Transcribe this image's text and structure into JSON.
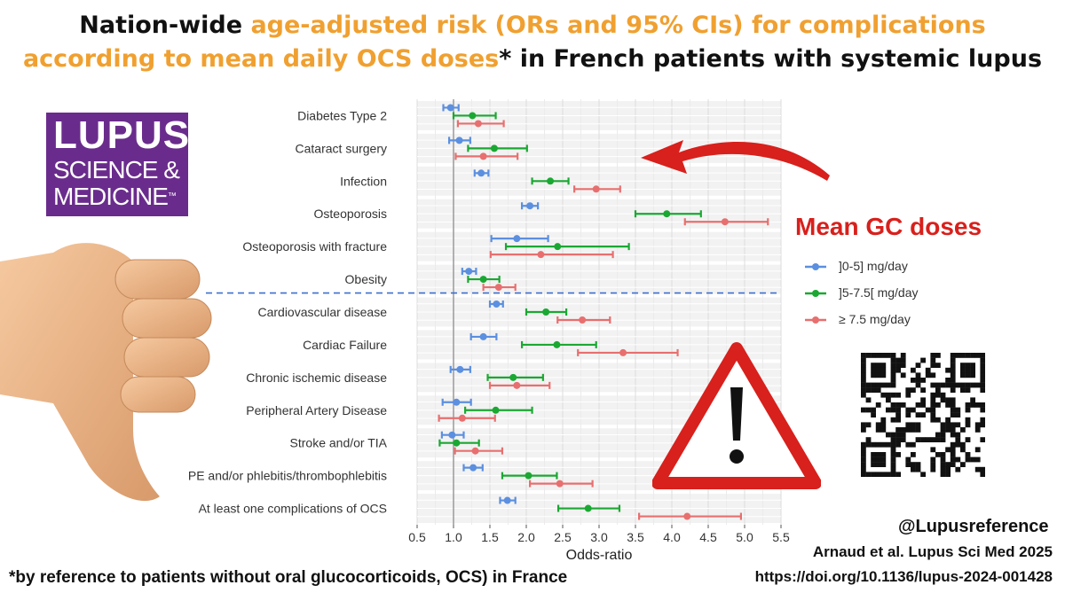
{
  "title": {
    "part1": "Nation-wide ",
    "part2_highlight": "age-adjusted risk (ORs and 95% CIs) for complications",
    "part3_highlight": "according to mean daily OCS doses",
    "part4": "* in French patients with systemic lupus"
  },
  "logo": {
    "line1": "LUPUS",
    "line2": "SCIENCE &",
    "line3": "MEDICINE",
    "tm": "™"
  },
  "legend": {
    "title": "Mean GC doses",
    "items": [
      "]0-5] mg/day",
      "]5-7.5[ mg/day",
      "≥ 7.5 mg/day"
    ]
  },
  "footer": {
    "handle": "@Lupusreference",
    "citation": "Arnaud et al. Lupus Sci Med 2025",
    "doi": "https://doi.org/10.1136/lupus-2024-001428",
    "footnote": "*by reference to patients without oral glucocorticoids, OCS) in France"
  },
  "colors": {
    "low": "#5b8fe0",
    "mid": "#1aa832",
    "high": "#e86f6f",
    "title_highlight": "#f0a030",
    "legend_title": "#d8201c",
    "logo_bg": "#6a2c8c"
  },
  "icons": [
    "thumbs-down-hand-icon",
    "warning-triangle-icon",
    "red-arrow-icon",
    "qr-code-icon"
  ],
  "chart_data": {
    "type": "forest",
    "xlabel": "Odds-ratio",
    "xlim": [
      0.5,
      5.5
    ],
    "xticks": [
      "0.5",
      "1.0",
      "1.5",
      "2.0",
      "2.5",
      "3.0",
      "3.5",
      "4.0",
      "4.5",
      "5.0",
      "5.5"
    ],
    "reference_line": 1.0,
    "separator_after_row": 6,
    "categories": [
      "Diabetes Type 2",
      "Cataract surgery",
      "Infection",
      "Osteoporosis",
      "Osteoporosis with fracture",
      "Obesity",
      "Cardiovascular disease",
      "Cardiac Failure",
      "Chronic ischemic disease",
      "Peripheral Artery Disease",
      "Stroke and/or TIA",
      "PE and/or phlebitis/thrombophlebitis",
      "At least one complications of OCS"
    ],
    "series": [
      {
        "name": "]0-5] mg/day",
        "color": "#5b8fe0",
        "or": [
          0.96,
          1.08,
          1.38,
          2.05,
          1.87,
          1.21,
          1.59,
          1.41,
          1.09,
          1.04,
          0.98,
          1.27,
          1.74
        ],
        "lower": [
          0.86,
          0.94,
          1.29,
          1.94,
          1.52,
          1.12,
          1.5,
          1.24,
          0.96,
          0.85,
          0.84,
          1.14,
          1.64
        ],
        "upper": [
          1.07,
          1.23,
          1.48,
          2.16,
          2.3,
          1.31,
          1.68,
          1.59,
          1.23,
          1.24,
          1.14,
          1.4,
          1.85
        ]
      },
      {
        "name": "]5-7.5[ mg/day",
        "color": "#1aa832",
        "or": [
          1.26,
          1.56,
          2.33,
          3.93,
          2.43,
          1.41,
          2.27,
          2.42,
          1.82,
          1.58,
          1.04,
          2.03,
          2.85
        ],
        "lower": [
          1.0,
          1.2,
          2.08,
          3.5,
          1.72,
          1.2,
          2.0,
          1.94,
          1.47,
          1.16,
          0.81,
          1.67,
          2.44
        ],
        "upper": [
          1.58,
          2.01,
          2.58,
          4.4,
          3.41,
          1.63,
          2.55,
          2.96,
          2.23,
          2.08,
          1.35,
          2.42,
          3.28
        ]
      },
      {
        "name": "≥ 7.5 mg/day",
        "color": "#e86f6f",
        "or": [
          1.34,
          1.41,
          2.96,
          4.73,
          2.2,
          1.62,
          2.77,
          3.33,
          1.87,
          1.12,
          1.3,
          2.46,
          4.21
        ],
        "lower": [
          1.06,
          1.03,
          2.66,
          4.18,
          1.51,
          1.41,
          2.43,
          2.71,
          1.5,
          0.8,
          1.02,
          2.05,
          3.55
        ],
        "upper": [
          1.69,
          1.88,
          3.29,
          5.32,
          3.19,
          1.85,
          3.15,
          4.08,
          2.32,
          1.57,
          1.67,
          2.91,
          4.95
        ]
      }
    ]
  }
}
